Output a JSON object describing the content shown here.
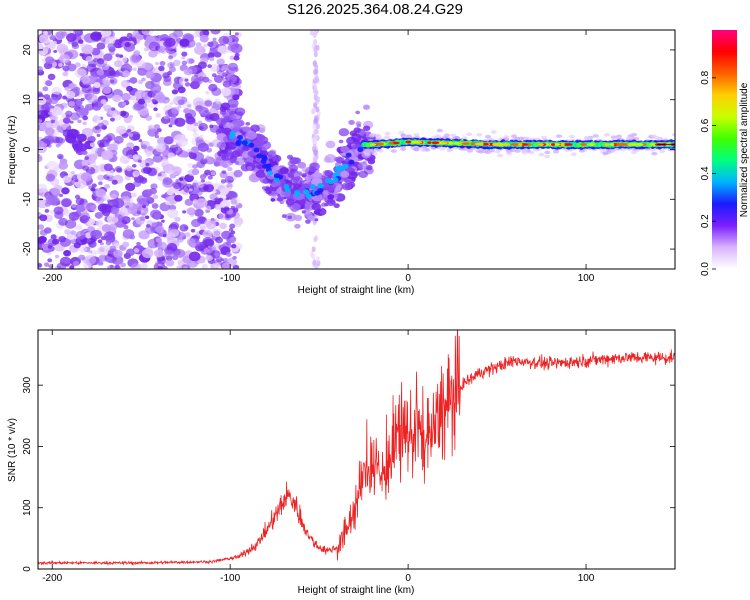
{
  "title": "S126.2025.364.08.24.G29",
  "chart_data": [
    {
      "type": "heatmap",
      "title": "S126.2025.364.08.24.G29",
      "xlabel": "Height of straight line (km)",
      "ylabel": "Frequency (Hz)",
      "xlim": [
        -208,
        150
      ],
      "ylim": [
        -24,
        24
      ],
      "xticks": [
        -200,
        -100,
        0,
        100
      ],
      "yticks": [
        -20,
        -10,
        0,
        10,
        20
      ],
      "colorbar": {
        "label": "Normalized spectral amplitude",
        "range": [
          0,
          1
        ],
        "ticks": [
          "0.0",
          "0.2",
          "0.4",
          "0.6",
          "0.8"
        ],
        "colors": [
          "#ffffff",
          "#d9b3ff",
          "#7a1fff",
          "#1a1aff",
          "#00b4ff",
          "#00ff80",
          "#40ff00",
          "#c8ff00",
          "#ffd000",
          "#ff6000",
          "#ff0000",
          "#ff0080"
        ]
      },
      "ridge": {
        "x": [
          -100,
          -90,
          -80,
          -70,
          -60,
          -50,
          -45,
          -40,
          -35,
          -30,
          -25,
          -20,
          0,
          50,
          100,
          150
        ],
        "freq": [
          3,
          1,
          -3,
          -7,
          -9,
          -8,
          -7,
          -5,
          -3,
          -1,
          1,
          1,
          1.5,
          1,
          1,
          1
        ]
      }
    },
    {
      "type": "line",
      "xlabel": "Height of straight line (km)",
      "ylabel": "SNR (10 * v/v)",
      "xlim": [
        -208,
        150
      ],
      "ylim": [
        0,
        390
      ],
      "xticks": [
        -200,
        -100,
        0,
        100
      ],
      "yticks": [
        0,
        100,
        200,
        300
      ],
      "color": "#ee2222",
      "envelope": {
        "x": [
          -208,
          -150,
          -110,
          -95,
          -85,
          -78,
          -72,
          -68,
          -64,
          -60,
          -55,
          -50,
          -45,
          -40,
          -35,
          -30,
          -25,
          -20,
          -15,
          -10,
          -5,
          0,
          5,
          10,
          15,
          20,
          25,
          30,
          40,
          50,
          60,
          80,
          100,
          120,
          150
        ],
        "y": [
          10,
          10,
          12,
          20,
          40,
          70,
          100,
          120,
          110,
          80,
          50,
          35,
          30,
          35,
          60,
          100,
          150,
          180,
          150,
          180,
          210,
          220,
          230,
          200,
          230,
          260,
          280,
          300,
          320,
          330,
          340,
          335,
          340,
          345,
          345
        ]
      }
    }
  ]
}
